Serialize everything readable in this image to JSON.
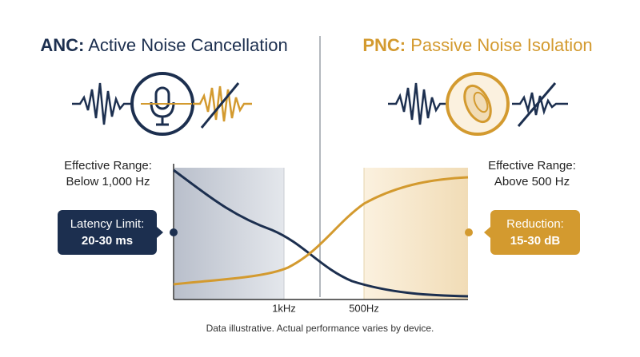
{
  "left": {
    "title_abbr": "ANC:",
    "title": "Active Noise Cancellation",
    "range_label": "Effective Range:",
    "range_value": "Below 1,000 Hz",
    "callout_label": "Latency Limit:",
    "callout_value": "20-30 ms"
  },
  "right": {
    "title_abbr": "PNC:",
    "title": "Passive Noise Isolation",
    "range_label": "Effective Range:",
    "range_value": "Above 500 Hz",
    "callout_label": "Reduction:",
    "callout_value": "15-30 dB"
  },
  "axis": {
    "ticks": [
      "1kHz",
      "500Hz"
    ]
  },
  "footnote": "Data illustrative. Actual performance varies by device."
}
